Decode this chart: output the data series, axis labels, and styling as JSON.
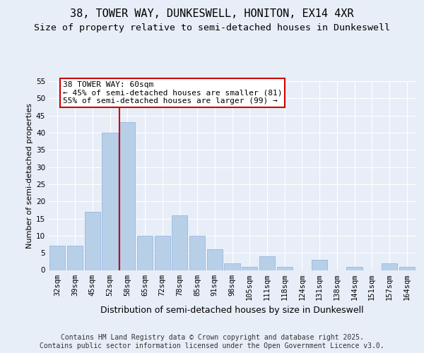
{
  "title_line1": "38, TOWER WAY, DUNKESWELL, HONITON, EX14 4XR",
  "title_line2": "Size of property relative to semi-detached houses in Dunkeswell",
  "xlabel": "Distribution of semi-detached houses by size in Dunkeswell",
  "ylabel": "Number of semi-detached properties",
  "categories": [
    "32sqm",
    "39sqm",
    "45sqm",
    "52sqm",
    "58sqm",
    "65sqm",
    "72sqm",
    "78sqm",
    "85sqm",
    "91sqm",
    "98sqm",
    "105sqm",
    "111sqm",
    "118sqm",
    "124sqm",
    "131sqm",
    "138sqm",
    "144sqm",
    "151sqm",
    "157sqm",
    "164sqm"
  ],
  "values": [
    7,
    7,
    17,
    40,
    43,
    10,
    10,
    16,
    10,
    6,
    2,
    1,
    4,
    1,
    0,
    3,
    0,
    1,
    0,
    2,
    1
  ],
  "bar_color": "#b8cfe8",
  "bar_edgecolor": "#8aafe0",
  "vline_index": 4,
  "vline_color": "#cc0000",
  "annotation_text_line1": "38 TOWER WAY: 60sqm",
  "annotation_text_line2": "← 45% of semi-detached houses are smaller (81)",
  "annotation_text_line3": "55% of semi-detached houses are larger (99) →",
  "annotation_box_edgecolor": "#cc0000",
  "annotation_box_facecolor": "#ffffff",
  "ylim": [
    0,
    55
  ],
  "yticks": [
    0,
    5,
    10,
    15,
    20,
    25,
    30,
    35,
    40,
    45,
    50,
    55
  ],
  "bg_color": "#e8eef7",
  "grid_color": "#ffffff",
  "footer_text": "Contains HM Land Registry data © Crown copyright and database right 2025.\nContains public sector information licensed under the Open Government Licence v3.0.",
  "title_fontsize": 11,
  "subtitle_fontsize": 9.5,
  "annotation_fontsize": 8,
  "footer_fontsize": 7,
  "ylabel_fontsize": 8,
  "xlabel_fontsize": 9,
  "tick_fontsize": 7.5
}
